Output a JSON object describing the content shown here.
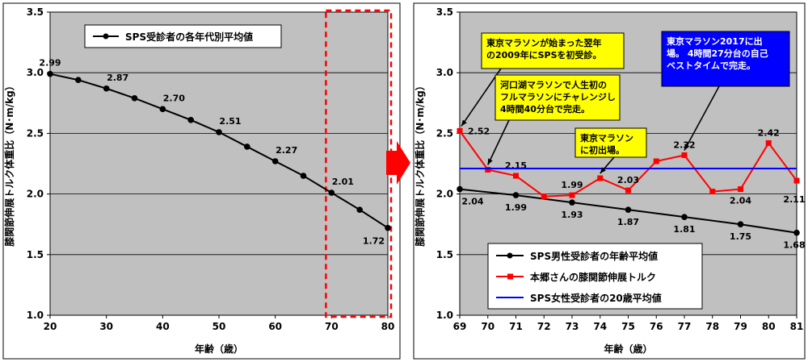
{
  "arrow_color": "#ff0000",
  "chart_data": [
    {
      "type": "line",
      "title": "",
      "xlabel": "年齢（歳）",
      "ylabel": "膝関節伸展トルク体重比（N･m/kg）",
      "xlim": [
        20,
        80
      ],
      "ylim": [
        1.0,
        3.5
      ],
      "x_ticks": [
        "20",
        "30",
        "40",
        "50",
        "60",
        "70",
        "80"
      ],
      "y_ticks": [
        "1.0",
        "1.5",
        "2.0",
        "2.5",
        "3.0",
        "3.5"
      ],
      "grid": true,
      "plot_bg": "#c0c0c0",
      "legend": "top-center",
      "highlight": {
        "x_range": [
          69,
          80
        ],
        "color": "#ff0000",
        "style": "dashed"
      },
      "series": [
        {
          "name": "SPS受診者の各年代別平均値",
          "color": "#000000",
          "marker": "circle",
          "x": [
            20,
            25,
            30,
            35,
            40,
            45,
            50,
            55,
            60,
            65,
            70,
            75,
            80
          ],
          "y": [
            2.99,
            2.94,
            2.87,
            2.79,
            2.7,
            2.61,
            2.51,
            2.39,
            2.27,
            2.15,
            2.01,
            1.87,
            1.72
          ],
          "labels": [
            {
              "x": 20,
              "text": "2.99"
            },
            {
              "x": 30,
              "text": "2.87"
            },
            {
              "x": 40,
              "text": "2.70"
            },
            {
              "x": 50,
              "text": "2.51"
            },
            {
              "x": 60,
              "text": "2.27"
            },
            {
              "x": 70,
              "text": "2.01"
            },
            {
              "x": 80,
              "text": "1.72"
            }
          ]
        }
      ]
    },
    {
      "type": "line",
      "title": "",
      "xlabel": "年齢（歳）",
      "ylabel": "膝関節伸展トルク体重比（N･m/kg）",
      "xlim": [
        69,
        81
      ],
      "ylim": [
        1.0,
        3.5
      ],
      "x_ticks": [
        "69",
        "70",
        "71",
        "72",
        "73",
        "74",
        "75",
        "76",
        "77",
        "78",
        "79",
        "80",
        "81"
      ],
      "y_ticks": [
        "1.0",
        "1.5",
        "2.0",
        "2.5",
        "3.0",
        "3.5"
      ],
      "grid": true,
      "plot_bg": "#c0c0c0",
      "legend": "bottom-left",
      "series": [
        {
          "name": "SPS男性受診者の年齢平均値",
          "color": "#000000",
          "marker": "circle",
          "x": [
            69,
            71,
            73,
            75,
            77,
            79,
            81
          ],
          "y": [
            2.04,
            1.99,
            1.93,
            1.87,
            1.81,
            1.75,
            1.68
          ],
          "labels": [
            {
              "x": 69,
              "text": "2.04"
            },
            {
              "x": 71,
              "text": "1.99"
            },
            {
              "x": 73,
              "text": "1.93"
            },
            {
              "x": 75,
              "text": "1.87"
            },
            {
              "x": 77,
              "text": "1.81"
            },
            {
              "x": 79,
              "text": "1.75"
            },
            {
              "x": 81,
              "text": "1.68"
            }
          ]
        },
        {
          "name": "本郷さんの膝関節伸展トルク",
          "color": "#ff0000",
          "marker": "square",
          "x": [
            69,
            70,
            71,
            72,
            73,
            74,
            75,
            76,
            77,
            78,
            79,
            80,
            81
          ],
          "y": [
            2.52,
            2.2,
            2.15,
            1.98,
            1.99,
            2.13,
            2.03,
            2.27,
            2.32,
            2.02,
            2.04,
            2.42,
            2.11
          ],
          "labels": [
            {
              "x": 69,
              "text": "2.52"
            },
            {
              "x": 71,
              "text": "2.15"
            },
            {
              "x": 73,
              "text": "1.99"
            },
            {
              "x": 75,
              "text": "2.03"
            },
            {
              "x": 77,
              "text": "2.32"
            },
            {
              "x": 79,
              "text": "2.04"
            },
            {
              "x": 80,
              "text": "2.42"
            },
            {
              "x": 81,
              "text": "2.11"
            }
          ]
        },
        {
          "name": "SPS女性受診者の20歳平均値",
          "color": "#0000ff",
          "marker": "none",
          "x": [
            69,
            81
          ],
          "y": [
            2.21,
            2.21
          ],
          "labels": []
        }
      ],
      "annotations": [
        {
          "text": "東京マラソンが始まった翌年\nの2009年にSPSを初受診。",
          "bg": "#ffff00",
          "fg": "#000000",
          "target": [
            69,
            2.52
          ]
        },
        {
          "text": "河口湖マラソンで人生初の\nフルマラソンにチャレンジし\n4時間40分台で完走。",
          "bg": "#ffff00",
          "fg": "#000000",
          "target": [
            70,
            2.2
          ]
        },
        {
          "text": "東京マラソン\nに初出場。",
          "bg": "#ffff00",
          "fg": "#000000",
          "target": [
            74,
            2.13
          ]
        },
        {
          "text": "東京マラソン2017に出\n場。 4時間27分台の自己\nベストタイムで完走。",
          "bg": "#0000ff",
          "fg": "#ffffff",
          "target": [
            77,
            2.32
          ]
        }
      ]
    }
  ]
}
